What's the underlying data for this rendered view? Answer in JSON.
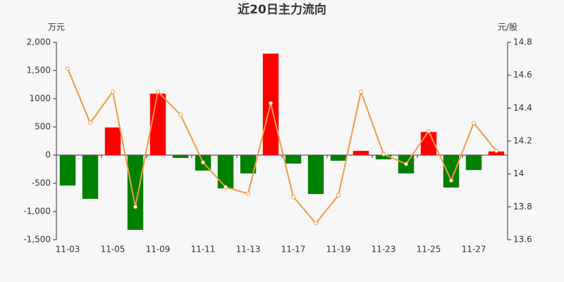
{
  "chart_data": {
    "type": "bar-line",
    "title": "近20日主力流向",
    "ylabel": "万元",
    "y2label": "元/股",
    "categories": [
      "11-03",
      null,
      "11-05",
      null,
      "11-09",
      null,
      "11-11",
      null,
      "11-13",
      null,
      "11-17",
      null,
      "11-19",
      null,
      "11-23",
      null,
      "11-25",
      null,
      "11-27",
      null
    ],
    "series": [
      {
        "type": "bar",
        "color": "#ff0000",
        "negative_color": "#008000",
        "values": [
          -540,
          -775,
          490,
          -1325,
          1090,
          -50,
          -275,
          -590,
          -325,
          1800,
          -150,
          -690,
          -100,
          75,
          -75,
          -325,
          410,
          -575,
          -265,
          65
        ]
      },
      {
        "type": "line",
        "axis": "y2",
        "color": "#f29a45",
        "values": [
          14.64,
          14.31,
          14.5,
          13.8,
          14.5,
          14.36,
          14.07,
          13.92,
          13.88,
          14.43,
          13.86,
          13.7,
          13.87,
          14.5,
          14.12,
          14.06,
          14.26,
          13.96,
          14.31,
          14.14
        ]
      }
    ],
    "ylim": [
      -1500,
      2000
    ],
    "yticks": [
      {
        "value": -1500,
        "label": "-1,500"
      },
      {
        "value": -1000,
        "label": "-1,000"
      },
      -500,
      0,
      500,
      1000,
      {
        "value": 1500,
        "label": "1,500"
      },
      {
        "value": 2000,
        "label": "2,000"
      }
    ],
    "y2lim": [
      13.6,
      14.8
    ],
    "y2ticks": [
      13.6,
      13.8,
      14,
      14.2,
      14.4,
      14.6,
      14.8
    ]
  }
}
